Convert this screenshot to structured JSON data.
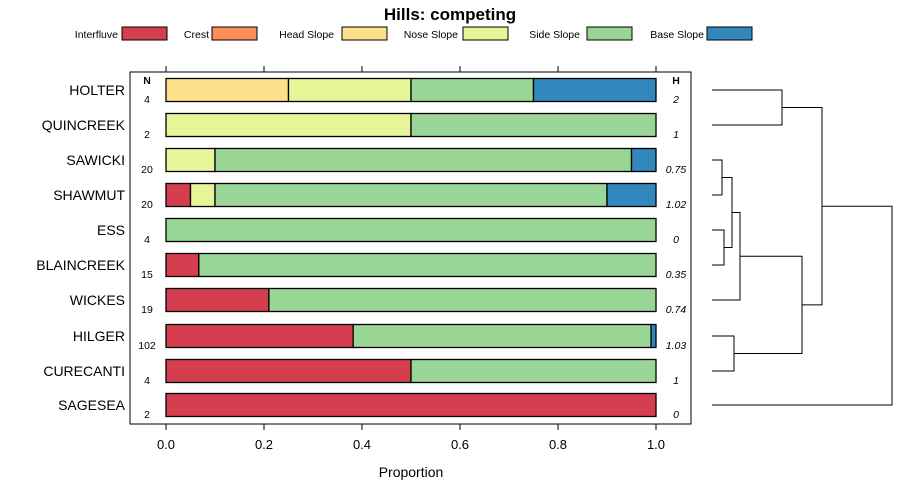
{
  "chart_data": {
    "type": "bar",
    "orientation": "horizontal",
    "stacked": true,
    "title": "Hills: competing",
    "xlabel": "Proportion",
    "ylabel": "",
    "xlim": [
      0,
      1
    ],
    "x_ticks": [
      "0.0",
      "0.2",
      "0.4",
      "0.6",
      "0.8",
      "1.0"
    ],
    "n_header": "N",
    "h_header": "H",
    "legend": {
      "position": "top",
      "entries": [
        {
          "name": "Interfluve",
          "color": "#d53e4f"
        },
        {
          "name": "Crest",
          "color": "#fc8d59"
        },
        {
          "name": "Head Slope",
          "color": "#fee08b"
        },
        {
          "name": "Nose Slope",
          "color": "#e6f598"
        },
        {
          "name": "Side Slope",
          "color": "#99d594"
        },
        {
          "name": "Base Slope",
          "color": "#3288bd"
        }
      ]
    },
    "categories": [
      "HOLTER",
      "QUINCREEK",
      "SAWICKI",
      "SHAWMUT",
      "ESS",
      "BLAINCREEK",
      "WICKES",
      "HILGER",
      "CURECANTI",
      "SAGESEA"
    ],
    "n_values": [
      "4",
      "2",
      "20",
      "20",
      "4",
      "15",
      "19",
      "102",
      "4",
      "2"
    ],
    "h_values": [
      "2",
      "1",
      "0.75",
      "1.02",
      "0",
      "0.35",
      "0.74",
      "1.03",
      "1",
      "0"
    ],
    "series": [
      {
        "name": "Interfluve",
        "values": [
          0,
          0,
          0,
          0.05,
          0,
          0.067,
          0.21,
          0.382,
          0.5,
          1.0
        ]
      },
      {
        "name": "Crest",
        "values": [
          0,
          0,
          0,
          0,
          0,
          0,
          0,
          0,
          0,
          0
        ]
      },
      {
        "name": "Head Slope",
        "values": [
          0.25,
          0,
          0,
          0,
          0,
          0,
          0,
          0,
          0,
          0
        ]
      },
      {
        "name": "Nose Slope",
        "values": [
          0.25,
          0.5,
          0.1,
          0.05,
          0,
          0,
          0,
          0,
          0,
          0
        ]
      },
      {
        "name": "Side Slope",
        "values": [
          0.25,
          0.5,
          0.85,
          0.8,
          1.0,
          0.933,
          0.79,
          0.608,
          0.5,
          0
        ]
      },
      {
        "name": "Base Slope",
        "values": [
          0.25,
          0,
          0.05,
          0.1,
          0,
          0,
          0,
          0.01,
          0,
          0
        ]
      }
    ],
    "dendrogram": {
      "merges": [
        {
          "left": "HOLTER",
          "right": "QUINCREEK",
          "height": 0.7
        },
        {
          "left": "SAWICKI",
          "right": "SHAWMUT",
          "height": 0.1
        },
        {
          "left": "ESS",
          "right": "BLAINCREEK",
          "height": 0.12
        },
        {
          "left": "m1",
          "right": "m2",
          "height": 0.2
        },
        {
          "left": "m3",
          "right": "WICKES",
          "height": 0.28
        },
        {
          "left": "HILGER",
          "right": "CURECANTI",
          "height": 0.22
        },
        {
          "left": "m4",
          "right": "m5",
          "height": 0.9
        },
        {
          "left": "m0",
          "right": "m6",
          "height": 1.1
        },
        {
          "left": "m7",
          "right": "SAGESEA",
          "height": 1.8
        }
      ]
    }
  }
}
